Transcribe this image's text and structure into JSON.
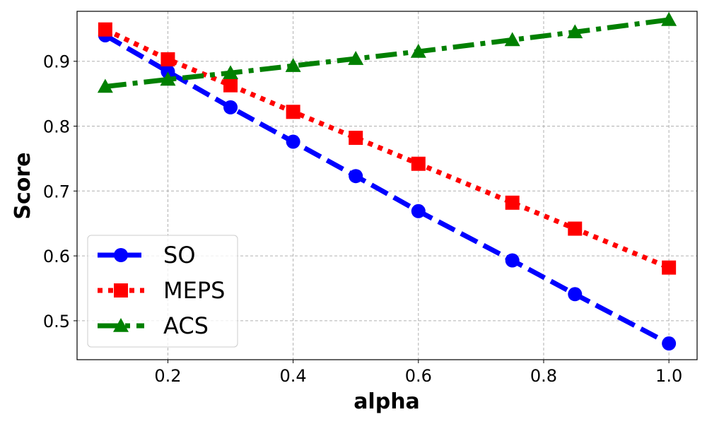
{
  "chart_data": {
    "type": "line",
    "title": "",
    "xlabel": "alpha",
    "ylabel": "Score",
    "xlim": [
      0.055,
      1.045
    ],
    "ylim": [
      0.44,
      0.977
    ],
    "xticks": [
      0.2,
      0.4,
      0.6,
      0.8,
      1.0
    ],
    "xtick_labels": [
      "0.2",
      "0.4",
      "0.6",
      "0.8",
      "1.0"
    ],
    "yticks": [
      0.5,
      0.6,
      0.7,
      0.8,
      0.9
    ],
    "ytick_labels": [
      "0.5",
      "0.6",
      "0.7",
      "0.8",
      "0.9"
    ],
    "grid": true,
    "legend_position": "lower-left",
    "series": [
      {
        "name": "SO",
        "color": "#0000ff",
        "marker": "circle",
        "line_style": "dashed",
        "x": [
          0.1,
          0.2,
          0.3,
          0.4,
          0.5,
          0.6,
          0.75,
          0.85,
          1.0
        ],
        "values": [
          0.94,
          0.884,
          0.829,
          0.776,
          0.723,
          0.669,
          0.593,
          0.541,
          0.465
        ]
      },
      {
        "name": "MEPS",
        "color": "#ff0000",
        "marker": "square",
        "line_style": "dotted",
        "x": [
          0.1,
          0.2,
          0.3,
          0.4,
          0.5,
          0.6,
          0.75,
          0.85,
          1.0
        ],
        "values": [
          0.949,
          0.903,
          0.863,
          0.822,
          0.782,
          0.742,
          0.682,
          0.642,
          0.582
        ]
      },
      {
        "name": "ACS",
        "color": "#008000",
        "marker": "triangle",
        "line_style": "dashdot",
        "x": [
          0.1,
          0.2,
          0.3,
          0.4,
          0.5,
          0.6,
          0.75,
          0.85,
          1.0
        ],
        "values": [
          0.861,
          0.872,
          0.882,
          0.893,
          0.904,
          0.915,
          0.933,
          0.945,
          0.964
        ]
      }
    ]
  }
}
